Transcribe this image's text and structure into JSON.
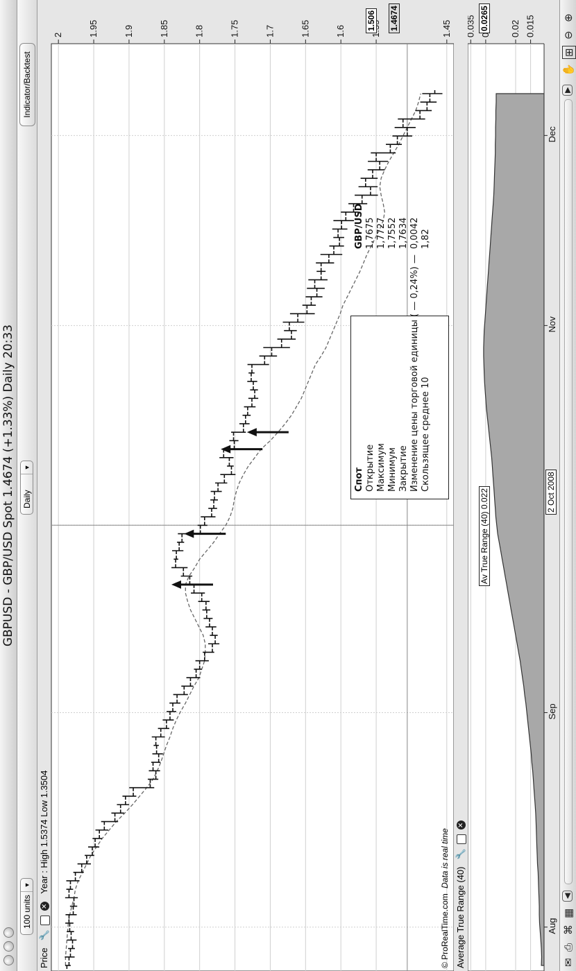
{
  "window": {
    "title": "GBPUSD - GBP/USD Spot   1.4674 (+1.33%)   Daily  20:33"
  },
  "toolbar": {
    "units_value": "100 units",
    "period_value": "Daily",
    "indicator_button": "Indicator/Backtest"
  },
  "price_panel": {
    "label": "Price",
    "year_info": "Year : High 1.5374 Low 1.3504",
    "current_tag": "1.4674",
    "crosshair_tag": "1.506",
    "copyright": "© ProRealTime.com",
    "realtime_note": "Data is real time"
  },
  "atr_panel": {
    "label": "Average True Range (40)",
    "value_tag": "Av True Range (40) 0.022",
    "current_tag": "0.0265",
    "y_ticks": [
      "0.035",
      "0.03",
      "0.02",
      "0.015"
    ]
  },
  "crosshair_date": "2 Oct 2008",
  "tooltip": {
    "header_left": "Спот",
    "header_right": "GBP/USD",
    "rows": [
      {
        "label": "Открытие",
        "value": "1,7675"
      },
      {
        "label": "Максимум",
        "value": "1,7727"
      },
      {
        "label": "Минимум",
        "value": "1,7552"
      },
      {
        "label": "Закрытие",
        "value": "1,7634"
      },
      {
        "label": "Изменение цены торговой единицы ( — 0,24%) —",
        "value": "0,0042"
      },
      {
        "label": "Скользящее среднее 10",
        "value": "1,82"
      }
    ]
  },
  "icons": [
    "close-icon",
    "wrench-icon",
    "window-icon",
    "zoom-in-icon",
    "zoom-out-icon",
    "envelope-icon",
    "printer-icon",
    "binoculars-icon"
  ],
  "colors": {
    "bars": "#111111",
    "moving_average": "#666666",
    "atr_fill": "#a8a8a8",
    "background": "#ffffff"
  },
  "chart_data": [
    {
      "type": "ohlc",
      "title": "GBPUSD - GBP/USD Spot",
      "x_labels": [
        "Aug",
        "Sep",
        "2 Oct 2008",
        "Nov",
        "Dec"
      ],
      "y_ticks": [
        "2",
        "1.95",
        "1.9",
        "1.85",
        "1.8",
        "1.75",
        "1.7",
        "1.65",
        "1.6",
        "1.55",
        "1.45"
      ],
      "ylim": [
        1.44,
        2.01
      ],
      "grid": true,
      "series": [
        {
          "name": "GBP/USD",
          "close": [
            1.985,
            1.983,
            1.98,
            1.982,
            1.984,
            1.985,
            1.979,
            1.978,
            1.985,
            1.983,
            1.976,
            1.967,
            1.96,
            1.952,
            1.948,
            1.942,
            1.935,
            1.92,
            1.912,
            1.905,
            1.894,
            1.87,
            1.862,
            1.866,
            1.858,
            1.861,
            1.862,
            1.855,
            1.847,
            1.842,
            1.838,
            1.832,
            1.822,
            1.813,
            1.805,
            1.8,
            1.793,
            1.782,
            1.778,
            1.782,
            1.786,
            1.79,
            1.791,
            1.797,
            1.808,
            1.814,
            1.823,
            1.834,
            1.833,
            1.829,
            1.825,
            1.799,
            1.793,
            1.783,
            1.78,
            1.779,
            1.774,
            1.765,
            1.755,
            1.758,
            1.766,
            1.751,
            1.752,
            1.738,
            1.735,
            1.732,
            1.726,
            1.722,
            1.724,
            1.727,
            1.726,
            1.708,
            1.698,
            1.684,
            1.67,
            1.673,
            1.661,
            1.648,
            1.642,
            1.634,
            1.637,
            1.628,
            1.628,
            1.617,
            1.61,
            1.602,
            1.604,
            1.599,
            1.593,
            1.582,
            1.57,
            1.558,
            1.565,
            1.555,
            1.545,
            1.55,
            1.53,
            1.52,
            1.506,
            1.512,
            1.488,
            1.478,
            1.474,
            1.467
          ]
        },
        {
          "name": "Скользящее среднее 10",
          "values": [
            1.99,
            1.99,
            1.989,
            1.988,
            1.987,
            1.986,
            1.984,
            1.981,
            1.978,
            1.976,
            1.972,
            1.966,
            1.96,
            1.954,
            1.946,
            1.938,
            1.928,
            1.918,
            1.906,
            1.895,
            1.885,
            1.875,
            1.866,
            1.86,
            1.855,
            1.851,
            1.847,
            1.842,
            1.838,
            1.833,
            1.827,
            1.82,
            1.814,
            1.808,
            1.801,
            1.797,
            1.793,
            1.792,
            1.792,
            1.795,
            1.801,
            1.807,
            1.813,
            1.817,
            1.82,
            1.82,
            1.815,
            1.807,
            1.8,
            1.79,
            1.78,
            1.772,
            1.763,
            1.757,
            1.753,
            1.751,
            1.748,
            1.744,
            1.738,
            1.731,
            1.722,
            1.713,
            1.7,
            1.689,
            1.679,
            1.67,
            1.663,
            1.656,
            1.651,
            1.646,
            1.641,
            1.636,
            1.628,
            1.621,
            1.616,
            1.611,
            1.606,
            1.601,
            1.597,
            1.591,
            1.585,
            1.579,
            1.573,
            1.568,
            1.563,
            1.557,
            1.551,
            1.545,
            1.54,
            1.538,
            1.54,
            1.543,
            1.545,
            1.543,
            1.538,
            1.532,
            1.525,
            1.518,
            1.512,
            1.506,
            1.5,
            1.494,
            1.49,
            1.487
          ]
        }
      ]
    },
    {
      "type": "area",
      "title": "Average True Range (40)",
      "y_ticks": [
        "0.035",
        "0.03",
        "0.02",
        "0.015"
      ],
      "ylim": [
        0.0105,
        0.036
      ],
      "series": [
        {
          "name": "Average True Range (40)",
          "values": [
            0.0114,
            0.0113,
            0.0114,
            0.0116,
            0.0118,
            0.012,
            0.0121,
            0.0121,
            0.0122,
            0.0123,
            0.0124,
            0.0125,
            0.0127,
            0.0128,
            0.0129,
            0.013,
            0.0131,
            0.0132,
            0.0133,
            0.0135,
            0.0137,
            0.0139,
            0.0141,
            0.0143,
            0.0146,
            0.0148,
            0.0151,
            0.0154,
            0.0157,
            0.016,
            0.0163,
            0.0166,
            0.017,
            0.0173,
            0.0177,
            0.0181,
            0.0185,
            0.019,
            0.0195,
            0.02,
            0.0205,
            0.021,
            0.0215,
            0.022,
            0.0225,
            0.023,
            0.0235,
            0.024,
            0.0245,
            0.025,
            0.0255,
            0.026,
            0.0263,
            0.0266,
            0.0268,
            0.027,
            0.0272,
            0.0274,
            0.0276,
            0.0278,
            0.028,
            0.0283,
            0.0286,
            0.0289,
            0.0292,
            0.0295,
            0.0298,
            0.03,
            0.0302,
            0.0304,
            0.0305,
            0.0306,
            0.0307,
            0.0307,
            0.0306,
            0.0305,
            0.0303,
            0.0301,
            0.0299,
            0.0297,
            0.0295,
            0.0293,
            0.0291,
            0.0289,
            0.0287,
            0.0285,
            0.0283,
            0.0281,
            0.0279,
            0.0277,
            0.0275,
            0.0273,
            0.0272,
            0.0271,
            0.027,
            0.0269,
            0.0268,
            0.0268,
            0.0267,
            0.0267,
            0.0266,
            0.0266,
            0.0265,
            0.0265
          ]
        }
      ]
    }
  ]
}
